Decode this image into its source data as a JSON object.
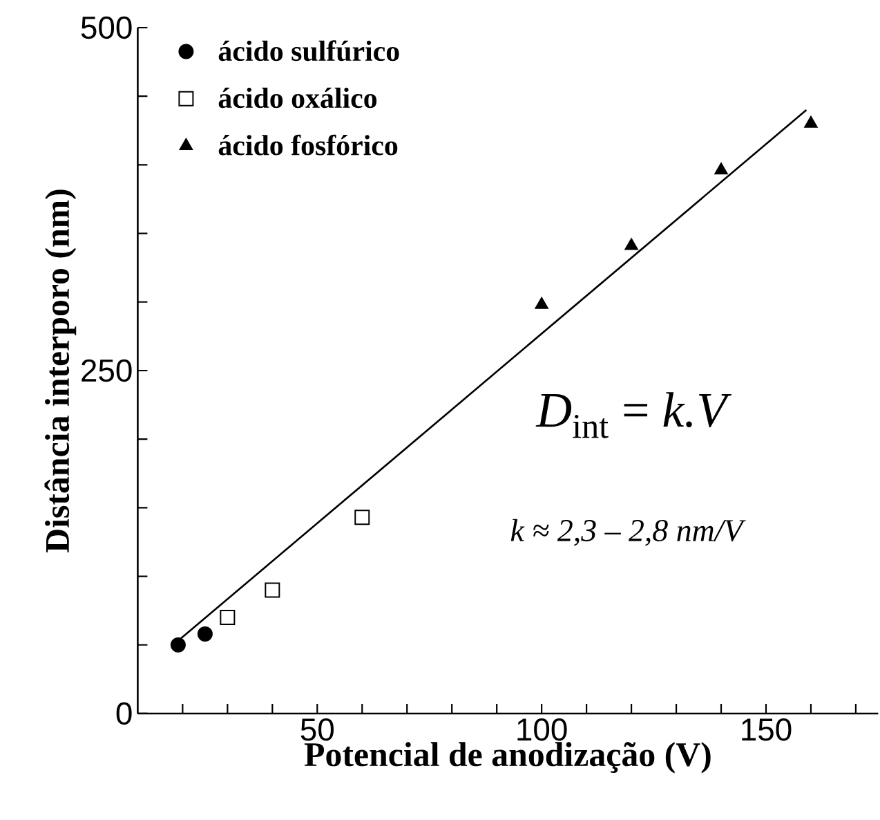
{
  "chart_data": {
    "type": "scatter",
    "xlabel": "Potencial de anodização (V)",
    "ylabel": "Distância interporo  (nm)",
    "xlim": [
      10,
      175
    ],
    "ylim": [
      0,
      500
    ],
    "xticks": [
      {
        "value": 20,
        "label": null
      },
      {
        "value": 30,
        "label": null
      },
      {
        "value": 40,
        "label": null
      },
      50,
      {
        "value": 60,
        "label": null
      },
      {
        "value": 70,
        "label": null
      },
      {
        "value": 80,
        "label": null
      },
      {
        "value": 90,
        "label": null
      },
      100,
      {
        "value": 110,
        "label": null
      },
      {
        "value": 120,
        "label": null
      },
      {
        "value": 130,
        "label": null
      },
      {
        "value": 140,
        "label": null
      },
      150,
      {
        "value": 160,
        "label": null
      },
      {
        "value": 170,
        "label": null
      }
    ],
    "yticks": [
      0,
      {
        "value": 50,
        "label": null
      },
      {
        "value": 100,
        "label": null
      },
      {
        "value": 150,
        "label": null
      },
      {
        "value": 200,
        "label": null
      },
      250,
      {
        "value": 300,
        "label": null
      },
      {
        "value": 350,
        "label": null
      },
      {
        "value": 400,
        "label": null
      },
      {
        "value": 450,
        "label": null
      },
      500
    ],
    "legend": "top left",
    "series": [
      {
        "name": "ácido sulfúrico",
        "color": "#000000",
        "marker": "circle",
        "x": [
          19,
          25
        ],
        "values": [
          50,
          58
        ]
      },
      {
        "name": "ácido oxálico",
        "color": "#000000",
        "marker": "square",
        "x": [
          30,
          40,
          60
        ],
        "values": [
          70,
          90,
          143
        ]
      },
      {
        "name": "ácido fosfórico",
        "color": "#000000",
        "marker": "triangle",
        "x": [
          100,
          120,
          140,
          160
        ],
        "values": [
          298,
          341,
          396,
          430
        ]
      },
      {
        "type": "line",
        "color": "#000000",
        "marker": "none",
        "x": [
          19,
          159
        ],
        "values": [
          53,
          440
        ]
      }
    ],
    "annotations": [
      "*D*$_{int}$ = *k.V*",
      "k ≈ 2,3 – 2,8 nm/V"
    ]
  }
}
